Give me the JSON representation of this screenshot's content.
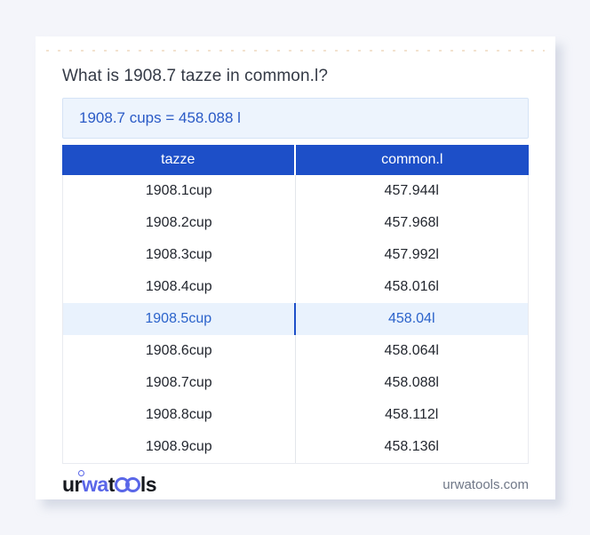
{
  "card": {
    "title": "What is 1908.7 tazze in common.l?",
    "result": "1908.7 cups = 458.088 l"
  },
  "table": {
    "headers": [
      "tazze",
      "common.l"
    ],
    "rows": [
      {
        "tazze": "1908.1cup",
        "common_l": "457.944l"
      },
      {
        "tazze": "1908.2cup",
        "common_l": "457.968l"
      },
      {
        "tazze": "1908.3cup",
        "common_l": "457.992l"
      },
      {
        "tazze": "1908.4cup",
        "common_l": "458.016l"
      },
      {
        "tazze": "1908.5cup",
        "common_l": "458.04l"
      },
      {
        "tazze": "1908.6cup",
        "common_l": "458.064l"
      },
      {
        "tazze": "1908.7cup",
        "common_l": "458.088l"
      },
      {
        "tazze": "1908.8cup",
        "common_l": "458.112l"
      },
      {
        "tazze": "1908.9cup",
        "common_l": "458.136l"
      }
    ],
    "highlighted_row_index": 4
  },
  "footer": {
    "logo": {
      "part1": "ur",
      "part2": "wa",
      "part3": "t",
      "oo_icon": "linked-circles",
      "part4": "ls"
    },
    "domain": "urwatools.com"
  },
  "colors": {
    "page_background": "#f4f5fa",
    "header_blue": "#1d4fc8",
    "result_box_background": "#edf4fd",
    "highlight_row_background": "#e9f2fd",
    "link_blue": "#2b63cb",
    "logo_blue": "#5a67e8"
  }
}
